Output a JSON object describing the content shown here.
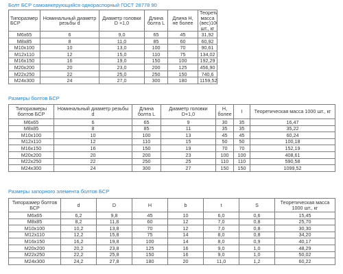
{
  "table1": {
    "title": "Болт БСР самоанкерующийся однораспорный ГОСТ 28778 90",
    "headers": [
      "Типоразмер БСР",
      "Номинальный диаметр резьбы d",
      "Диаметр головки D +1,0",
      "Длина болта L",
      "Длина H, не более",
      "Теоретическая масса (вес)1000 шт., кг"
    ],
    "rows": [
      [
        "М6х65",
        "6",
        "9,0",
        "65",
        "45",
        "31,92"
      ],
      [
        "М8х85",
        "8",
        "11,0",
        "85",
        "60",
        "60,92"
      ],
      [
        "М10х100",
        "10",
        "13,0",
        "100",
        "70",
        "90,61"
      ],
      [
        "М12х110",
        "12",
        "15,0",
        "110",
        "75",
        "134,02"
      ],
      [
        "М16х150",
        "16",
        "19,0",
        "150",
        "100",
        "192,29"
      ],
      [
        "М20х200",
        "20",
        "23,0",
        "200",
        "125",
        "456,90"
      ],
      [
        "М22х250",
        "22",
        "25,0",
        "250",
        "150",
        "740,6"
      ],
      [
        "М24х300",
        "24",
        "27,0",
        "300",
        "180",
        "1159,52"
      ]
    ]
  },
  "table2": {
    "title": "Размеры болтов БСР",
    "headers": [
      "Типоразмеры болтов БСР",
      "Номинальный диаметр резьбы d",
      "Длина болта L",
      "Диаметр головки D+1,0",
      "H, более",
      "I",
      "Теоретическая масса 1000 шт., кг"
    ],
    "rows": [
      [
        "М6х65",
        "6",
        "65",
        "9",
        "30",
        "35",
        "16,47"
      ],
      [
        "М8х85",
        "8",
        "85",
        "11",
        "35",
        "35",
        "35,22"
      ],
      [
        "М10х100",
        "10",
        "100",
        "13",
        "45",
        "45",
        "60,24"
      ],
      [
        "М12х110",
        "12",
        "110",
        "15",
        "50",
        "50",
        "100,18"
      ],
      [
        "М16х150",
        "16",
        "150",
        "19",
        "70",
        "70",
        "152,19"
      ],
      [
        "М20х200",
        "20",
        "200",
        "23",
        "100",
        "100",
        "408,61"
      ],
      [
        "М22х250",
        "22",
        "250",
        "25",
        "110",
        "110",
        "590,58"
      ],
      [
        "М24х300",
        "24",
        "300",
        "27",
        "150",
        "150",
        "1099,52"
      ]
    ]
  },
  "table3": {
    "title": "Размеры запорного элемента болтов БСР",
    "headers": [
      "Типоразмер болтов БСР",
      "d",
      "D",
      "H",
      "b",
      "t",
      "S",
      "Теоретическая масса 1000 шт., кг"
    ],
    "rows": [
      [
        "М6х65",
        "6,2",
        "9,8",
        "45",
        "10",
        "6,0",
        "0,6",
        "15,45"
      ],
      [
        "М8х85",
        "8,2",
        "11,8",
        "60",
        "12",
        "7,0",
        "0,8",
        "25,70"
      ],
      [
        "М10х100",
        "10,2",
        "13,8",
        "70",
        "12",
        "7,0",
        "0,8",
        "30,30"
      ],
      [
        "М12х110",
        "12,2",
        "15,8",
        "75",
        "14",
        "8,0",
        "0,8",
        "34,20"
      ],
      [
        "М16х150",
        "16,2",
        "19,8",
        "100",
        "14",
        "8,0",
        "0,9",
        "40,17"
      ],
      [
        "М20х200",
        "20,2",
        "23,8",
        "125",
        "16",
        "9,0",
        "1,0",
        "48,29"
      ],
      [
        "М22х250",
        "22,2",
        "25,8",
        "150",
        "16",
        "9,0",
        "1,0",
        "50,02"
      ],
      [
        "М24х300",
        "24,2",
        "27,8",
        "180",
        "20",
        "11,0",
        "1,2",
        "60,22"
      ]
    ]
  }
}
